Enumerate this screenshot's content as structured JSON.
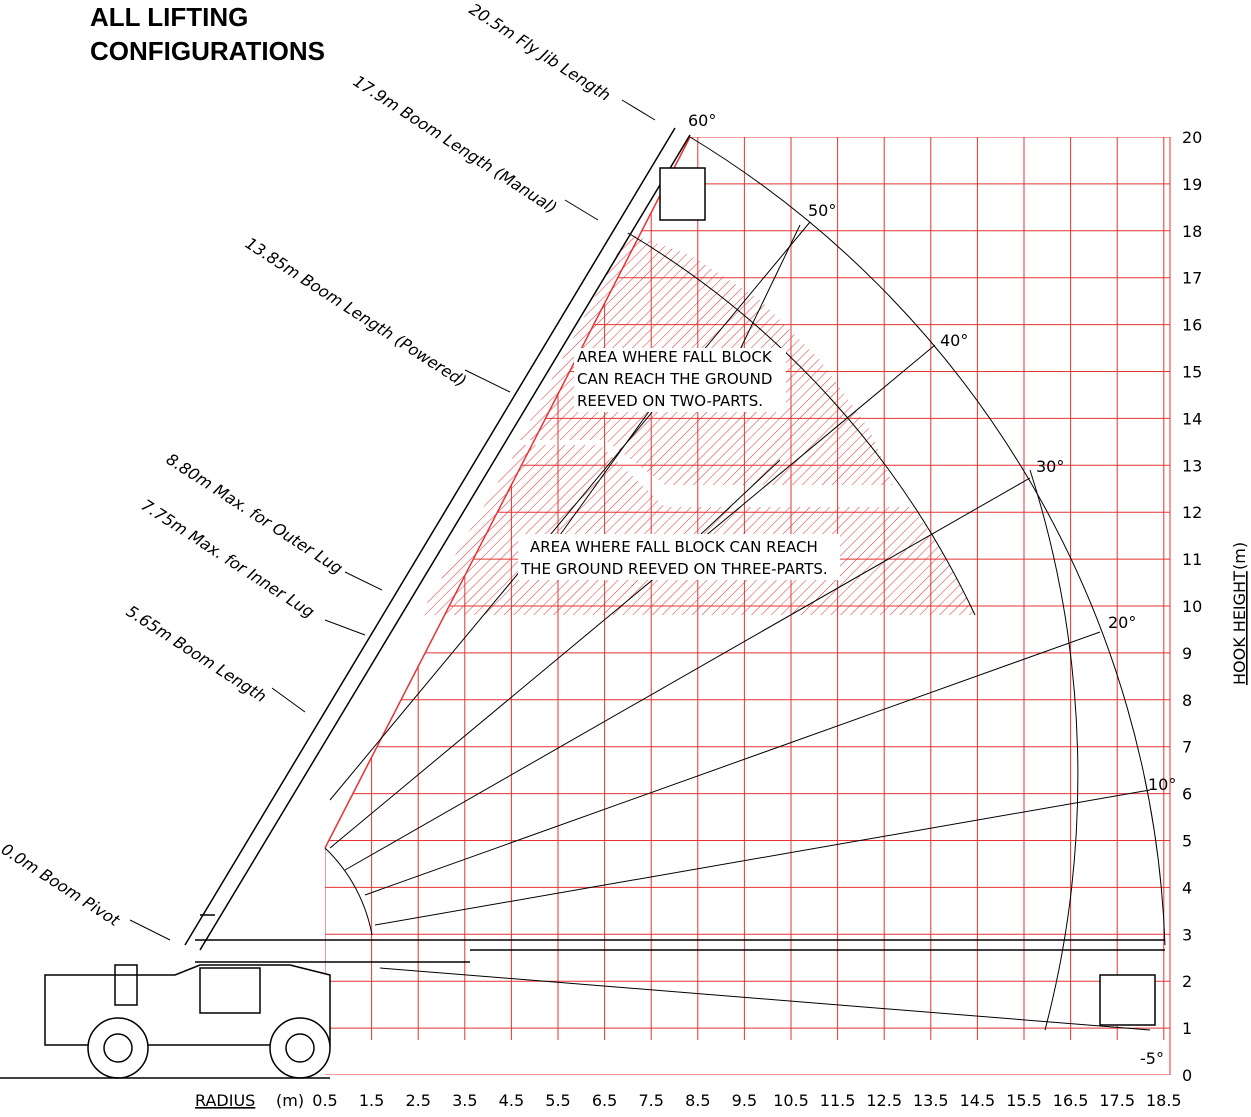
{
  "title": [
    "ALL LIFTING",
    "CONFIGURATIONS"
  ],
  "boom_labels": [
    "20.5m Fly Jib Length",
    "17.9m Boom Length (Manual)",
    "13.85m Boom Length (Powered)",
    "8.80m Max. for Outer Lug",
    "7.75m Max. for Inner Lug",
    "5.65m Boom Length",
    "0.0m Boom Pivot"
  ],
  "angle_labels": [
    "60°",
    "50°",
    "40°",
    "30°",
    "20°",
    "10°",
    "-5°"
  ],
  "areas": [
    [
      "AREA WHERE FALL BLOCK",
      "CAN REACH THE GROUND",
      "REEVED ON TWO-PARTS."
    ],
    [
      "AREA WHERE FALL BLOCK CAN REACH",
      "THE GROUND REEVED ON THREE-PARTS."
    ]
  ],
  "x_axis": {
    "label": "RADIUS",
    "unit": "(m)",
    "ticks": [
      0.5,
      1.5,
      2.5,
      3.5,
      4.5,
      5.5,
      6.5,
      7.5,
      8.5,
      9.5,
      10.5,
      11.5,
      12.5,
      13.5,
      14.5,
      15.5,
      16.5,
      17.5,
      18.5
    ]
  },
  "y_axis": {
    "label": "HOOK HEIGHT",
    "unit": "(m)",
    "ticks": [
      0,
      1,
      2,
      3,
      4,
      5,
      6,
      7,
      8,
      9,
      10,
      11,
      12,
      13,
      14,
      15,
      16,
      17,
      18,
      19,
      20
    ]
  }
}
